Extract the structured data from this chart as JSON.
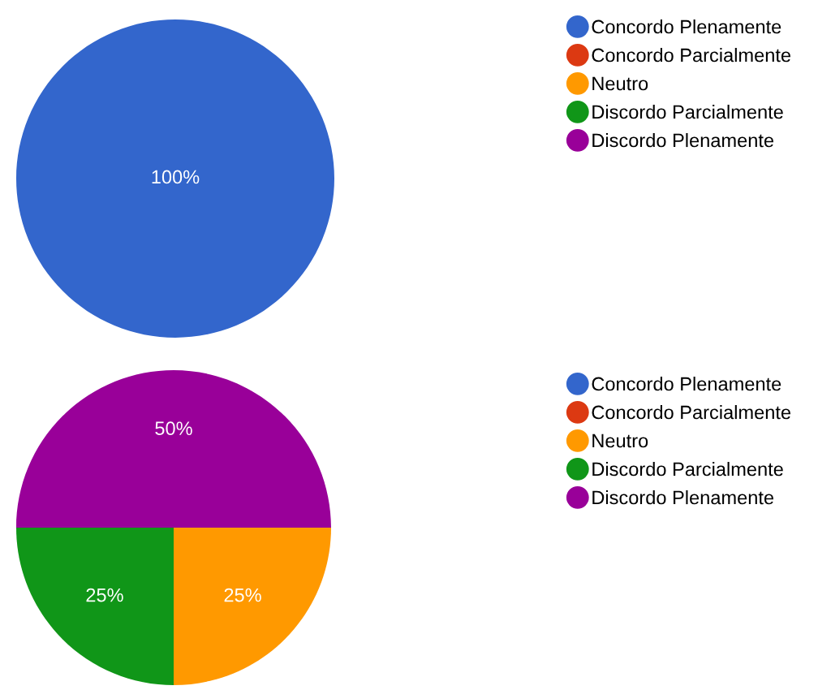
{
  "chart_data": [
    {
      "type": "pie",
      "categories": [
        "Concordo Plenamente",
        "Concordo Parcialmente",
        "Neutro",
        "Discordo Parcialmente",
        "Discordo Plenamente"
      ],
      "values": [
        100,
        0,
        0,
        0,
        0
      ],
      "colors": [
        "#3366cc",
        "#dc3912",
        "#ff9900",
        "#109618",
        "#990099"
      ],
      "value_labels": [
        "100%",
        null,
        null,
        null,
        null
      ],
      "legend": "right"
    },
    {
      "type": "pie",
      "categories": [
        "Concordo Plenamente",
        "Concordo Parcialmente",
        "Neutro",
        "Discordo Parcialmente",
        "Discordo Plenamente"
      ],
      "values": [
        0,
        0,
        25,
        25,
        50
      ],
      "colors": [
        "#3366cc",
        "#dc3912",
        "#ff9900",
        "#109618",
        "#990099"
      ],
      "value_labels": [
        null,
        null,
        "25%",
        "25%",
        "50%"
      ],
      "legend": "right"
    }
  ]
}
